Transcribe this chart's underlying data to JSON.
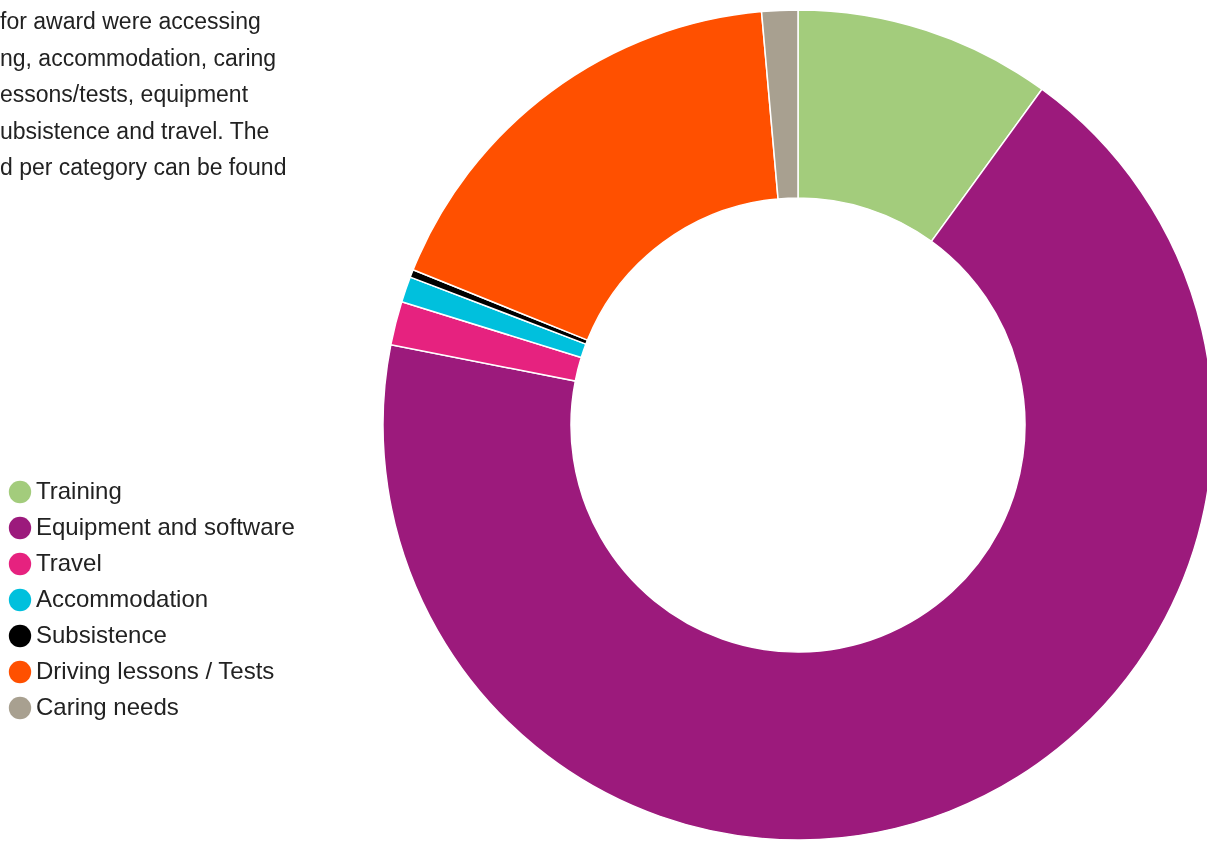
{
  "chart_data": {
    "type": "donut",
    "categories": [
      "Training",
      "Equipment and software",
      "Travel",
      "Accommodation",
      "Subsistence",
      "Driving lessons / Tests",
      "Caring needs"
    ],
    "values": [
      10.0,
      68.1,
      1.7,
      1.0,
      0.3,
      17.5,
      1.4
    ],
    "colors": [
      "#a3cc7c",
      "#9c1a7c",
      "#e6227f",
      "#00c0dd",
      "#000000",
      "#ff5000",
      "#a8a090"
    ],
    "legend": "left",
    "annotations": [
      "for award were accessing",
      "ng, accommodation, caring",
      "essons/tests, equipment",
      "ubsistence and travel. The",
      "d per category can be found"
    ]
  }
}
